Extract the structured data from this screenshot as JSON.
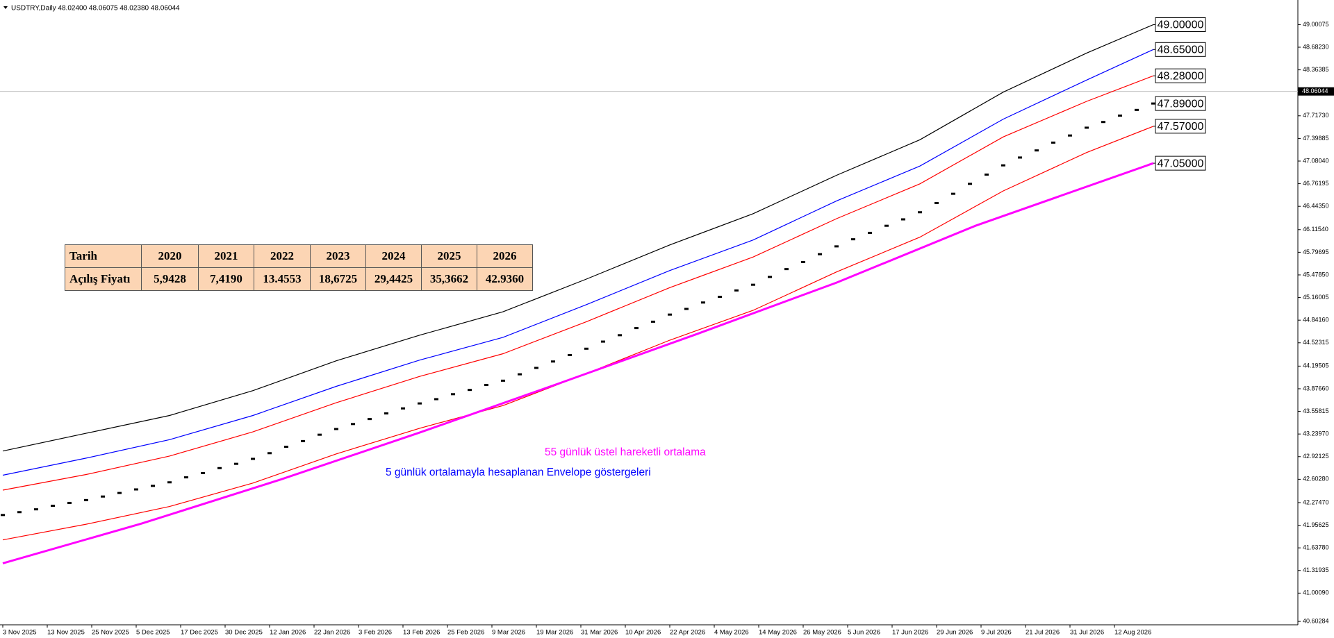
{
  "chart_data": {
    "type": "candlestick",
    "header": "USDTRY,Daily  48.02400 48.06075 48.02380 48.06044",
    "current_price": {
      "value": 48.06044,
      "label": "48.06044"
    },
    "xlim": [
      -0.5,
      233
    ],
    "ylim": [
      40.555,
      49.288
    ],
    "xticks": [
      {
        "value": 0,
        "label": "3 Nov 2025"
      },
      {
        "value": 8,
        "label": "13 Nov 2025"
      },
      {
        "value": 16,
        "label": "25 Nov 2025"
      },
      {
        "value": 24,
        "label": "5 Dec 2025"
      },
      {
        "value": 32,
        "label": "17 Dec 2025"
      },
      {
        "value": 40,
        "label": "30 Dec 2025"
      },
      {
        "value": 48,
        "label": "12 Jan 2026"
      },
      {
        "value": 56,
        "label": "22 Jan 2026"
      },
      {
        "value": 64,
        "label": "3 Feb 2026"
      },
      {
        "value": 72,
        "label": "13 Feb 2026"
      },
      {
        "value": 80,
        "label": "25 Feb 2026"
      },
      {
        "value": 88,
        "label": "9 Mar 2026"
      },
      {
        "value": 96,
        "label": "19 Mar 2026"
      },
      {
        "value": 104,
        "label": "31 Mar 2026"
      },
      {
        "value": 112,
        "label": "10 Apr 2026"
      },
      {
        "value": 120,
        "label": "22 Apr 2026"
      },
      {
        "value": 128,
        "label": "4 May 2026"
      },
      {
        "value": 136,
        "label": "14 May 2026"
      },
      {
        "value": 144,
        "label": "26 May 2026"
      },
      {
        "value": 152,
        "label": "5 Jun 2026"
      },
      {
        "value": 160,
        "label": "17 Jun 2026"
      },
      {
        "value": 168,
        "label": "29 Jun 2026"
      },
      {
        "value": 176,
        "label": "9 Jul 2026"
      },
      {
        "value": 184,
        "label": "21 Jul 2026"
      },
      {
        "value": 192,
        "label": "31 Jul 2026"
      },
      {
        "value": 200,
        "label": "12 Aug 2026"
      }
    ],
    "yticks": [
      49.00075,
      {
        "value": 48.6823,
        "label": "48.68230"
      },
      48.36385,
      {
        "value": 47.7173,
        "label": "47.71730"
      },
      47.39885,
      {
        "value": 47.0804,
        "label": "47.08040"
      },
      46.76195,
      {
        "value": 46.4435,
        "label": "46.44350"
      },
      {
        "value": 46.1154,
        "label": "46.11540"
      },
      45.79695,
      {
        "value": 45.4785,
        "label": "45.47850"
      },
      45.16005,
      {
        "value": 44.8416,
        "label": "44.84160"
      },
      44.52315,
      44.19505,
      {
        "value": 43.8766,
        "label": "43.87660"
      },
      43.55815,
      {
        "value": 43.2397,
        "label": "43.23970"
      },
      42.92125,
      {
        "value": 42.6028,
        "label": "42.60280"
      },
      {
        "value": 42.2747,
        "label": "42.27470"
      },
      41.95625,
      {
        "value": 41.6378,
        "label": "41.63780"
      },
      41.31935,
      {
        "value": 41.0009,
        "label": "41.00090"
      },
      40.60284
    ],
    "series": [
      {
        "type": "line",
        "color": "#000000",
        "x": [
          0,
          15,
          30,
          45,
          60,
          75,
          90,
          105,
          120,
          135,
          150,
          165,
          180,
          195,
          207
        ],
        "values": [
          43.0,
          43.25,
          43.5,
          43.85,
          44.27,
          44.63,
          44.96,
          45.42,
          45.9,
          46.34,
          46.88,
          47.38,
          48.05,
          48.6,
          49.0
        ],
        "end_label": "49.00000"
      },
      {
        "type": "line",
        "color": "#0000ff",
        "x": [
          0,
          15,
          30,
          45,
          60,
          75,
          90,
          105,
          120,
          135,
          150,
          165,
          180,
          195,
          207
        ],
        "values": [
          42.66,
          42.9,
          43.16,
          43.5,
          43.91,
          44.28,
          44.6,
          45.06,
          45.54,
          45.97,
          46.52,
          47.01,
          47.67,
          48.22,
          48.65
        ],
        "end_label": "48.65000"
      },
      {
        "type": "line",
        "color": "#ff0000",
        "x": [
          0,
          15,
          30,
          45,
          60,
          75,
          90,
          105,
          120,
          135,
          150,
          165,
          180,
          195,
          207
        ],
        "values": [
          42.45,
          42.67,
          42.93,
          43.27,
          43.68,
          44.05,
          44.37,
          44.82,
          45.3,
          45.73,
          46.27,
          46.76,
          47.42,
          47.92,
          48.28
        ],
        "end_label": "48.28000"
      },
      {
        "type": "line",
        "color": "#ff0000",
        "x": [
          0,
          15,
          30,
          45,
          60,
          75,
          90,
          105,
          120,
          135,
          150,
          165,
          180,
          195,
          207
        ],
        "values": [
          41.75,
          41.97,
          42.22,
          42.55,
          42.96,
          43.32,
          43.64,
          44.09,
          44.56,
          44.98,
          45.52,
          46.01,
          46.66,
          47.2,
          47.57
        ],
        "end_label": "47.57000"
      },
      {
        "type": "line",
        "color": "#ff00ff",
        "width": 3,
        "x": [
          0,
          25,
          50,
          75,
          100,
          125,
          150,
          175,
          207
        ],
        "values": [
          41.42,
          41.98,
          42.6,
          43.26,
          43.95,
          44.65,
          45.37,
          46.17,
          47.05
        ],
        "end_label": "47.05000"
      },
      {
        "type": "candle",
        "color": "#000000",
        "x": [
          0,
          3,
          6,
          9,
          12,
          15,
          18,
          21,
          24,
          27,
          30,
          33,
          36,
          39,
          42,
          45,
          48,
          51,
          54,
          57,
          60,
          63,
          66,
          69,
          72,
          75,
          78,
          81,
          84,
          87,
          90,
          93,
          96,
          99,
          102,
          105,
          108,
          111,
          114,
          117,
          120,
          123,
          126,
          129,
          132,
          135,
          138,
          141,
          144,
          147,
          150,
          153,
          156,
          159,
          162,
          165,
          168,
          171,
          174,
          177,
          180,
          183,
          186,
          189,
          192,
          195,
          198,
          201,
          204,
          207
        ],
        "values": [
          42.1,
          42.14,
          42.18,
          42.23,
          42.27,
          42.31,
          42.36,
          42.41,
          42.46,
          42.51,
          42.56,
          42.63,
          42.69,
          42.76,
          42.82,
          42.89,
          42.97,
          43.06,
          43.14,
          43.23,
          43.31,
          43.38,
          43.45,
          43.53,
          43.6,
          43.67,
          43.73,
          43.8,
          43.86,
          43.93,
          43.99,
          44.08,
          44.17,
          44.26,
          44.35,
          44.44,
          44.54,
          44.63,
          44.73,
          44.82,
          44.92,
          45.0,
          45.09,
          45.17,
          45.26,
          45.34,
          45.45,
          45.56,
          45.66,
          45.77,
          45.88,
          45.98,
          46.07,
          46.17,
          46.26,
          46.36,
          46.49,
          46.62,
          46.76,
          46.89,
          47.02,
          47.13,
          47.23,
          47.34,
          47.44,
          47.55,
          47.63,
          47.72,
          47.8,
          47.89
        ],
        "end_label": "47.89000"
      }
    ],
    "annotations": [
      {
        "text": "55 günlük üstel hareketli ortalama",
        "color": "#ff00ff"
      },
      {
        "text": "5 günlük ortalamayla hesaplanan Envelope göstergeleri",
        "color": "#0000ff"
      }
    ]
  },
  "table": {
    "header": [
      "Tarih",
      "2020",
      "2021",
      "2022",
      "2023",
      "2024",
      "2025",
      "2026"
    ],
    "rows": [
      [
        "Açılış Fiyatı",
        "5,9428",
        "7,4190",
        "13.4553",
        "18,6725",
        "29,4425",
        "35,3662",
        "42.9360"
      ]
    ]
  }
}
